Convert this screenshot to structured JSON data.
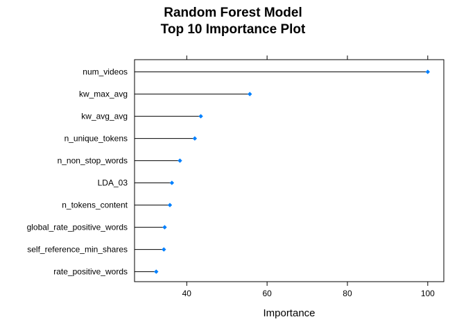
{
  "chart_data": {
    "type": "dot",
    "title": "Random Forest Model",
    "subtitle": "Top 10 Importance Plot",
    "xlabel": "Importance",
    "ylabel": "",
    "xlim": [
      27,
      104
    ],
    "xticks": [
      40,
      60,
      80,
      100
    ],
    "categories": [
      "num_videos",
      "kw_max_avg",
      "kw_avg_avg",
      "n_unique_tokens",
      "n_non_stop_words",
      "LDA_03",
      "n_tokens_content",
      "global_rate_positive_words",
      "self_reference_min_shares",
      "rate_positive_words"
    ],
    "values": [
      100,
      55.7,
      43.5,
      42.0,
      38.3,
      36.3,
      35.8,
      34.5,
      34.3,
      32.4
    ],
    "grid": false,
    "legend": "none",
    "point_color": "#0080ff",
    "line_color": "#000000"
  }
}
